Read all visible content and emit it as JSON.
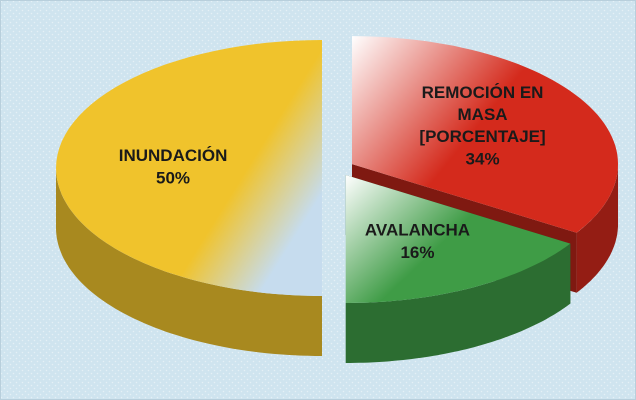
{
  "chart_data": {
    "type": "pie3d",
    "categories": [
      "REMOCIÓN EN MASA [PORCENTAJE]",
      "AVALANCHA",
      "INUNDACIÓN"
    ],
    "values": [
      34,
      16,
      50
    ],
    "value_labels": [
      "34%",
      "16%",
      "50%"
    ],
    "colors": [
      "#d42a1c",
      "#3f9c46",
      "#f0c32c"
    ]
  }
}
